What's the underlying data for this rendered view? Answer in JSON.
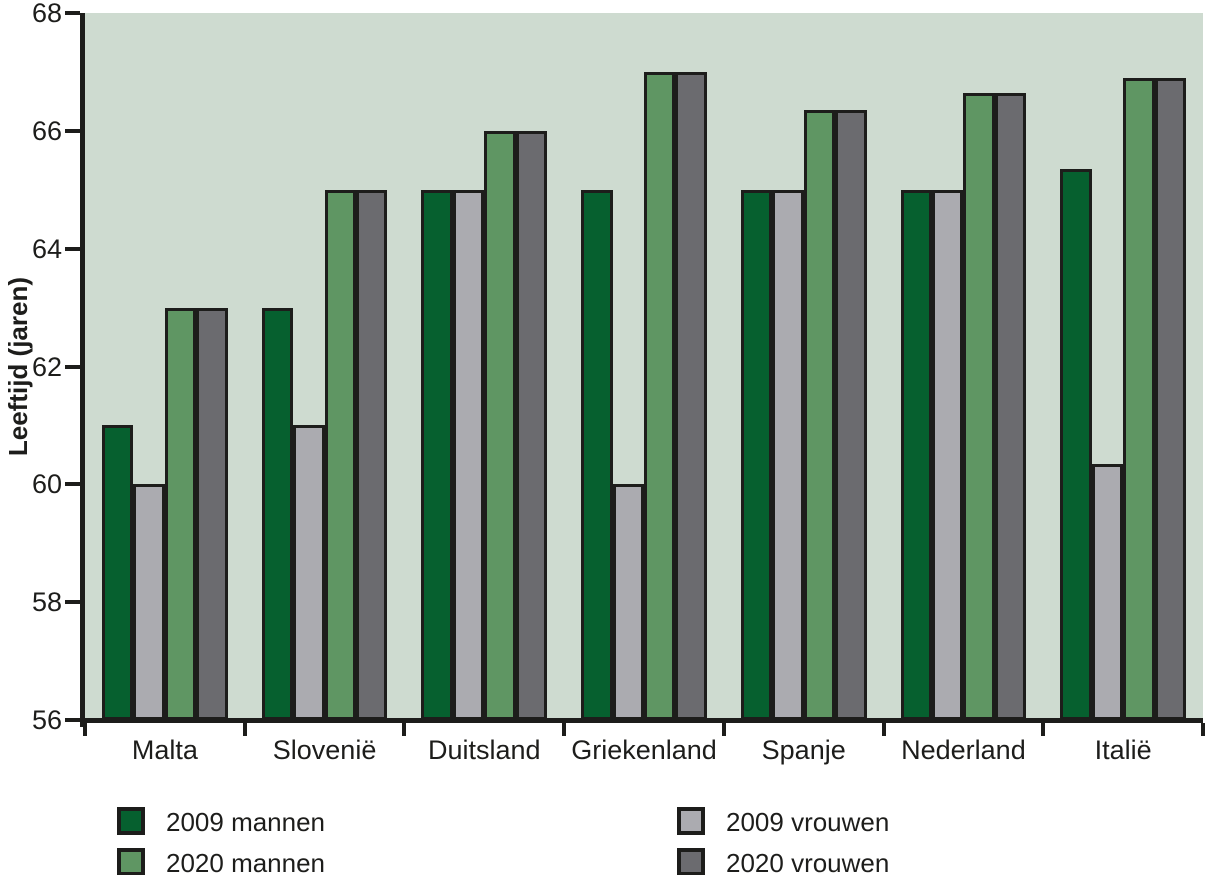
{
  "chart_data": {
    "type": "bar",
    "title": "",
    "xlabel": "",
    "ylabel": "Leeftijd (jaren)",
    "ylim": [
      56,
      68
    ],
    "yticks": [
      56,
      58,
      60,
      62,
      64,
      66,
      68
    ],
    "grid": false,
    "plot_bg_color": "#cedbd0",
    "outline_color": "#1d1d1b",
    "categories": [
      "Malta",
      "Slovenië",
      "Duitsland",
      "Griekenland",
      "Spanje",
      "Nederland",
      "Italië"
    ],
    "series": [
      {
        "name": "2009 mannen",
        "color": "#06602f",
        "values": [
          61,
          63,
          65,
          65,
          65,
          65,
          65.35
        ]
      },
      {
        "name": "2009 vrouwen",
        "color": "#ababb0",
        "values": [
          60,
          61,
          65,
          60,
          65,
          65,
          60.35
        ]
      },
      {
        "name": "2020 mannen",
        "color": "#5f9663",
        "values": [
          63,
          65,
          66,
          67,
          66.35,
          66.65,
          66.9
        ]
      },
      {
        "name": "2020 vrouwen",
        "color": "#6b6b6f",
        "values": [
          63,
          65,
          66,
          67,
          66.35,
          66.65,
          66.9
        ]
      }
    ],
    "legend": {
      "position": "bottom",
      "columns": [
        [
          "2009 mannen",
          "2020 mannen"
        ],
        [
          "2009 vrouwen",
          "2020 vrouwen"
        ]
      ]
    }
  }
}
